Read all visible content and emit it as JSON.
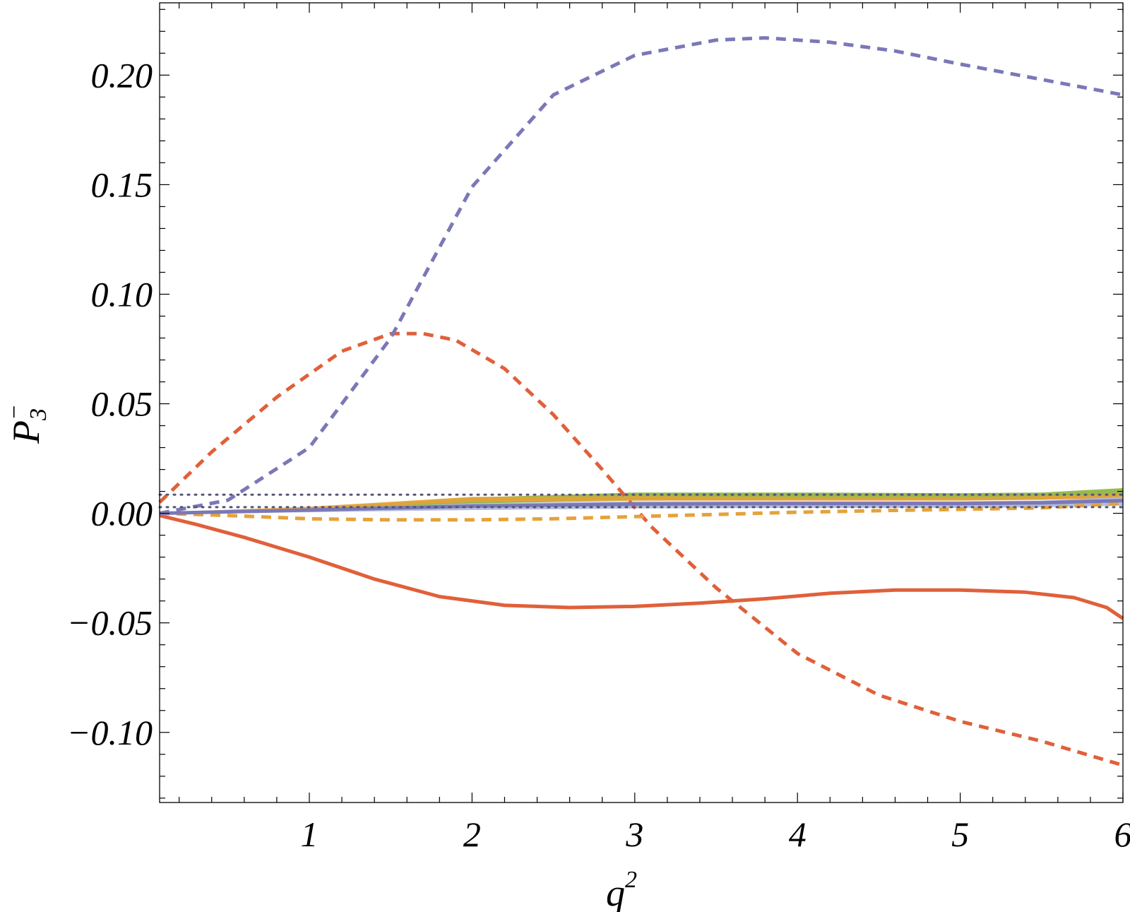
{
  "chart_data": {
    "type": "line",
    "title": "",
    "xlabel": {
      "base": "q",
      "sup": "2"
    },
    "ylabel": {
      "base": "P",
      "sub": "3",
      "sup": "−"
    },
    "xlim": [
      0.08,
      6.0
    ],
    "ylim": [
      -0.132,
      0.233
    ],
    "x_ticks": [
      1,
      2,
      3,
      4,
      5,
      6
    ],
    "x_tick_labels": [
      "1",
      "2",
      "3",
      "4",
      "5",
      "6"
    ],
    "y_ticks": [
      -0.1,
      -0.05,
      0.0,
      0.05,
      0.1,
      0.15,
      0.2
    ],
    "y_tick_labels": [
      "−0.10",
      "−0.05",
      "0.00",
      "0.05",
      "0.10",
      "0.15",
      "0.20"
    ],
    "grid": false,
    "legend": "none",
    "bands": [
      {
        "color": "#8bb33a",
        "x": [
          0.08,
          1,
          2,
          3,
          4,
          5,
          5.5,
          6
        ],
        "upper": [
          0.0005,
          0.0025,
          0.0072,
          0.0095,
          0.0095,
          0.0092,
          0.0095,
          0.0115
        ],
        "lower": [
          -0.0005,
          0.0015,
          0.0045,
          0.0058,
          0.006,
          0.006,
          0.0062,
          0.0072
        ]
      },
      {
        "color": "#e5a23a",
        "x": [
          0.08,
          1,
          2,
          3,
          4,
          5,
          5.5,
          6
        ],
        "upper": [
          0.0005,
          0.003,
          0.0075,
          0.0078,
          0.0075,
          0.0075,
          0.0078,
          0.009
        ],
        "lower": [
          -0.0005,
          0.0018,
          0.0052,
          0.0058,
          0.0058,
          0.0058,
          0.0062,
          0.007
        ]
      },
      {
        "color": "#aab6d8",
        "x": [
          0.08,
          1,
          2,
          3,
          4,
          5,
          5.5,
          6
        ],
        "upper": [
          0.0005,
          0.0022,
          0.0045,
          0.0055,
          0.0055,
          0.0055,
          0.0058,
          0.0075
        ],
        "lower": [
          -0.0005,
          0.0005,
          0.0015,
          0.0022,
          0.0025,
          0.0025,
          0.0028,
          0.0035
        ]
      }
    ],
    "series": [
      {
        "color": "#e0603a",
        "style": "solid",
        "x": [
          0.08,
          0.3,
          0.6,
          1.0,
          1.4,
          1.8,
          2.2,
          2.6,
          3.0,
          3.4,
          3.8,
          4.2,
          4.6,
          5.0,
          5.4,
          5.7,
          5.9,
          6.0
        ],
        "values": [
          -0.001,
          -0.005,
          -0.011,
          -0.02,
          -0.03,
          -0.038,
          -0.042,
          -0.043,
          -0.0425,
          -0.041,
          -0.039,
          -0.0365,
          -0.035,
          -0.035,
          -0.036,
          -0.0385,
          -0.043,
          -0.048
        ]
      },
      {
        "color": "#e0603a",
        "style": "dashed",
        "x": [
          0.08,
          0.4,
          0.8,
          1.2,
          1.5,
          1.7,
          1.9,
          2.2,
          2.5,
          2.8,
          3.1,
          3.5,
          4.0,
          4.5,
          5.0,
          5.5,
          6.0
        ],
        "values": [
          0.005,
          0.028,
          0.053,
          0.074,
          0.082,
          0.082,
          0.079,
          0.066,
          0.045,
          0.02,
          -0.006,
          -0.034,
          -0.064,
          -0.083,
          -0.095,
          -0.104,
          -0.115
        ]
      },
      {
        "color": "#7b78b8",
        "style": "dashed",
        "x": [
          0.08,
          0.5,
          1.0,
          1.5,
          2.0,
          2.5,
          3.0,
          3.5,
          3.8,
          4.2,
          4.6,
          5.0,
          5.5,
          6.0
        ],
        "values": [
          0.0,
          0.006,
          0.03,
          0.08,
          0.149,
          0.191,
          0.209,
          0.216,
          0.217,
          0.215,
          0.211,
          0.205,
          0.198,
          0.191
        ]
      },
      {
        "color": "#e5a23a",
        "style": "dashed",
        "x": [
          0.08,
          0.5,
          1.0,
          1.5,
          2.0,
          2.5,
          3.0,
          3.5,
          4.0,
          4.5,
          5.0,
          5.5,
          6.0
        ],
        "values": [
          0.0,
          -0.001,
          -0.0025,
          -0.003,
          -0.003,
          -0.0025,
          -0.0015,
          -0.0005,
          0.0005,
          0.0012,
          0.0018,
          0.0025,
          0.0045
        ]
      },
      {
        "color": "#7b78b8",
        "style": "solid",
        "x": [
          0.08,
          1,
          2,
          3,
          4,
          5,
          5.5,
          6
        ],
        "values": [
          0.0,
          0.0015,
          0.0033,
          0.0042,
          0.0045,
          0.0045,
          0.0048,
          0.0058
        ]
      },
      {
        "color": "#555577",
        "style": "dotted",
        "x": [
          0.08,
          6.0
        ],
        "values": [
          0.0028,
          0.0028
        ]
      },
      {
        "color": "#555577",
        "style": "dotted",
        "x": [
          0.08,
          6.0
        ],
        "values": [
          0.0085,
          0.0085
        ]
      }
    ]
  }
}
